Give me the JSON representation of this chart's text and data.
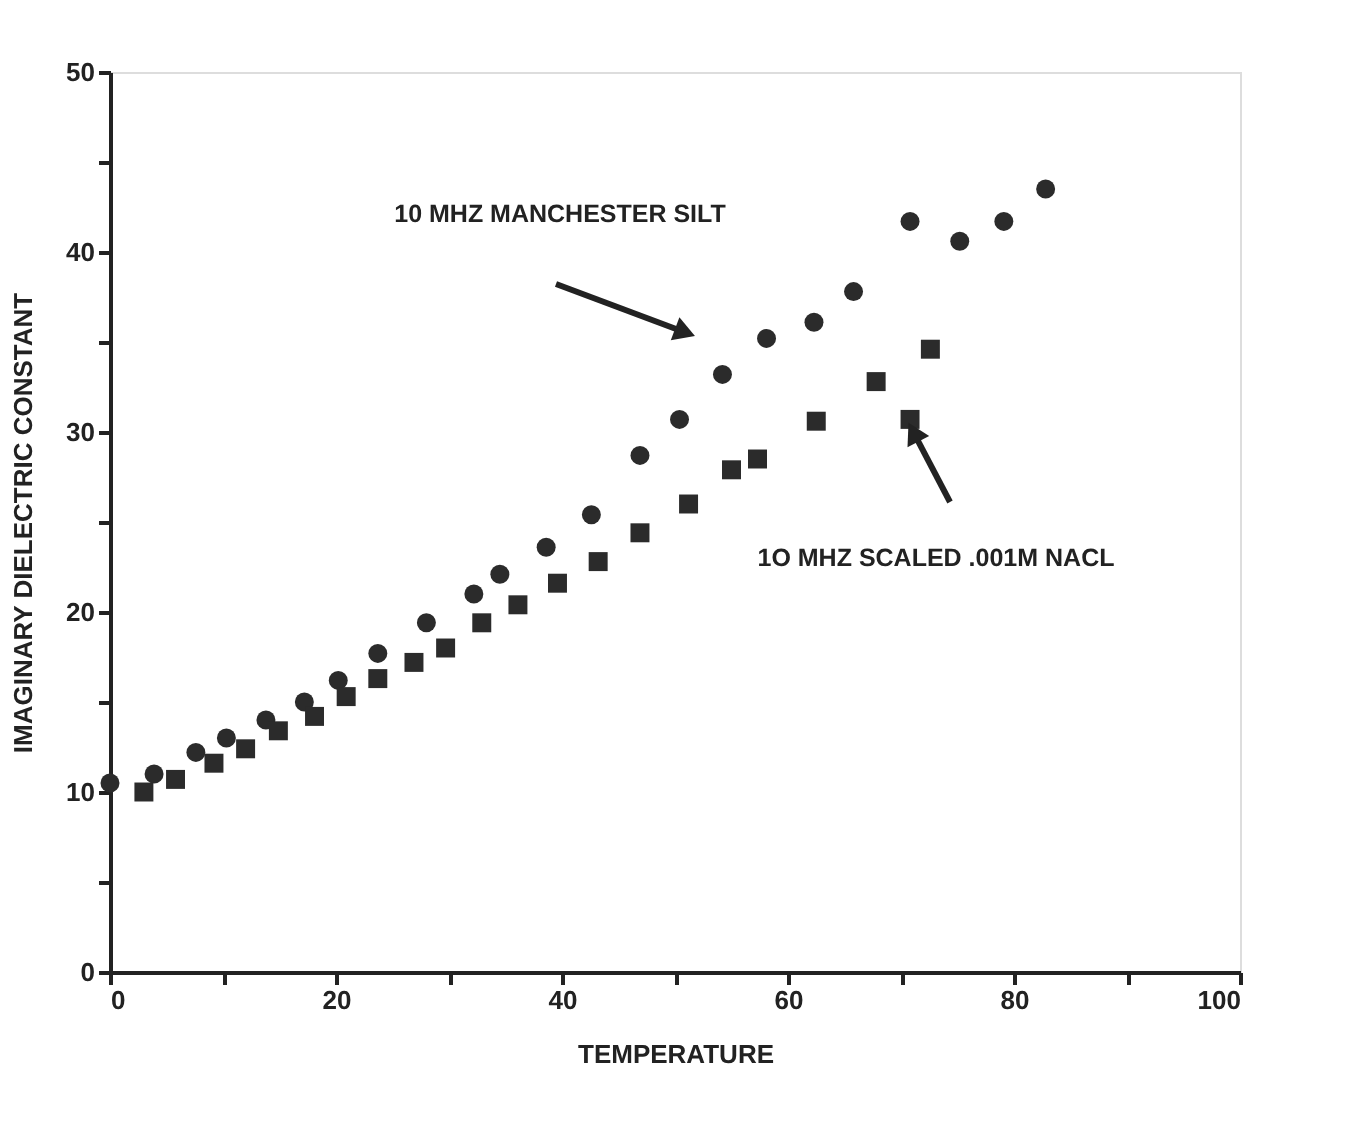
{
  "chart_data": {
    "type": "scatter",
    "xlabel": "TEMPERATURE",
    "ylabel": "IMAGINARY DIELECTRIC CONSTANT",
    "xlim": [
      0,
      100
    ],
    "ylim": [
      0,
      50
    ],
    "xticks": [
      0,
      {
        "value": 10,
        "label": null
      },
      20,
      {
        "value": 30,
        "label": null
      },
      40,
      {
        "value": 50,
        "label": null
      },
      60,
      {
        "value": 70,
        "label": null
      },
      80,
      {
        "value": 90,
        "label": null
      },
      100
    ],
    "yticks": [
      0,
      {
        "value": 5,
        "label": null
      },
      10,
      {
        "value": 15,
        "label": null
      },
      20,
      {
        "value": 25,
        "label": null
      },
      30,
      {
        "value": 35,
        "label": null
      },
      40,
      {
        "value": 45,
        "label": null
      },
      50
    ],
    "grid": false,
    "legend": false,
    "series": [
      {
        "marker": "circle",
        "color": "#2b2b2b",
        "x": [
          0,
          3.9,
          7.6,
          10.3,
          13.8,
          17.2,
          20.2,
          23.7,
          28.0,
          32.2,
          34.5,
          38.6,
          42.6,
          46.9,
          50.4,
          54.2,
          58.1,
          62.3,
          65.8,
          70.8,
          75.2,
          79.1,
          82.8
        ],
        "values": [
          10.5,
          11.0,
          12.2,
          13.0,
          14.0,
          15.0,
          16.2,
          17.7,
          19.4,
          21.0,
          22.1,
          23.6,
          25.4,
          28.7,
          30.7,
          33.2,
          35.2,
          36.1,
          37.8,
          41.7,
          40.6,
          41.7,
          43.5
        ]
      },
      {
        "marker": "square",
        "color": "#2b2b2b",
        "x": [
          3.0,
          5.8,
          9.2,
          12.0,
          14.9,
          18.1,
          20.9,
          23.7,
          26.9,
          29.7,
          32.9,
          36.1,
          39.6,
          43.2,
          46.9,
          51.2,
          55.0,
          57.3,
          62.5,
          67.8,
          70.8,
          72.6
        ],
        "values": [
          10.0,
          10.7,
          11.6,
          12.4,
          13.4,
          14.2,
          15.3,
          16.3,
          17.2,
          18.0,
          19.4,
          20.4,
          21.6,
          22.8,
          24.4,
          26.0,
          27.9,
          28.5,
          30.6,
          32.8,
          30.7,
          34.6
        ]
      }
    ],
    "annotations": [
      "10 MHZ MANCHESTER SILT",
      "1O MHZ SCALED .001M NACL"
    ]
  }
}
